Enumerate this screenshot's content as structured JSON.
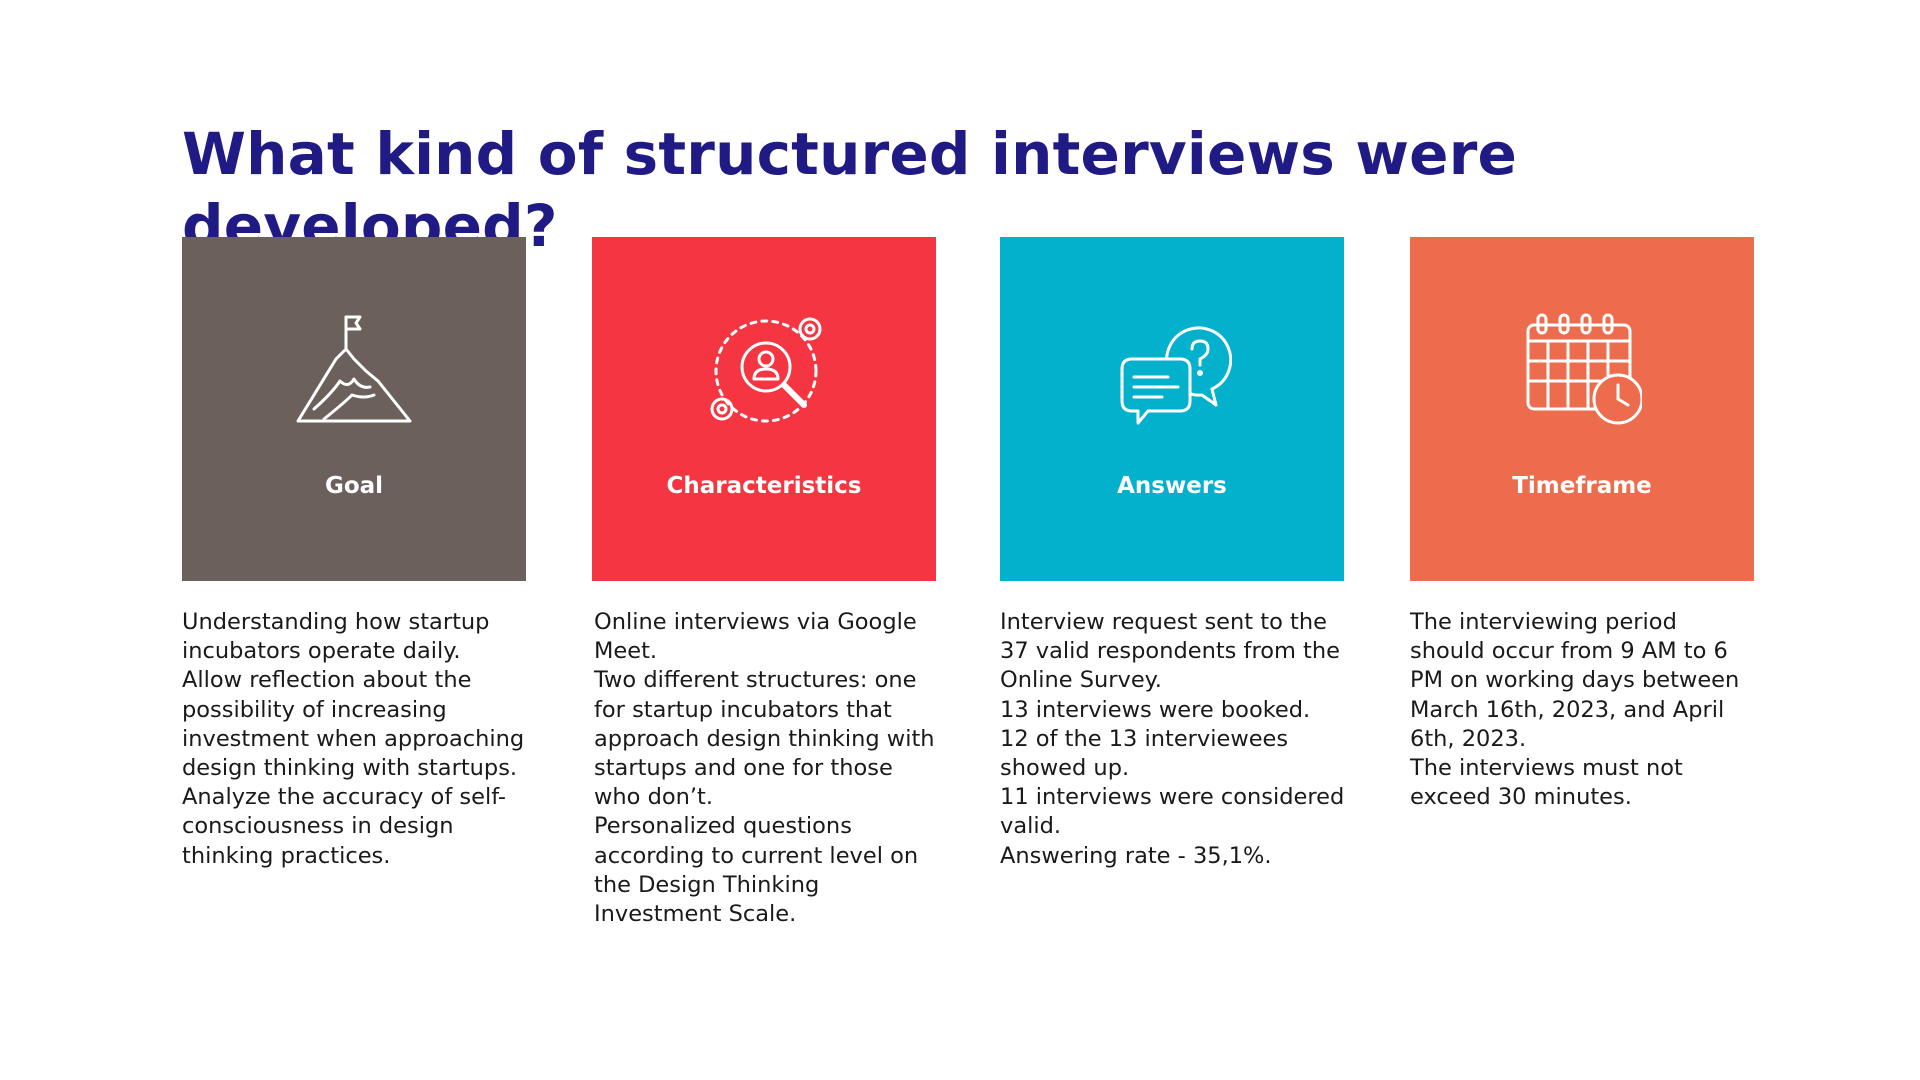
{
  "title": "What kind of structured interviews were developed?",
  "cards": [
    {
      "label": "Goal",
      "color": "#6b605c",
      "icon": "mountain-flag-icon",
      "lines": [
        "Understanding how startup incubators operate daily.",
        "Allow reflection about the possibility of increasing investment when approaching design thinking with startups.",
        "Analyze the accuracy of self-consciousness in design thinking practices."
      ]
    },
    {
      "label": "Characteristics",
      "color": "#f53642",
      "icon": "user-search-gears-icon",
      "lines": [
        "Online interviews via Google Meet.",
        "Two different structures: one for startup incubators that approach design thinking with startups and one for those who don’t.",
        "Personalized questions according to current level on the Design Thinking Investment Scale."
      ]
    },
    {
      "label": "Answers",
      "color": "#03b1cd",
      "icon": "chat-question-icon",
      "lines": [
        "Interview request sent to the 37 valid respondents from the Online Survey.",
        "13 interviews were booked.",
        "12 of the 13 interviewees showed up.",
        "11 interviews were considered valid.",
        "Answering rate - 35,1%."
      ]
    },
    {
      "label": "Timeframe",
      "color": "#ee6c4e",
      "icon": "calendar-clock-icon",
      "lines": [
        "The interviewing period should occur from 9 AM to 6 PM on working days between March 16th, 2023, and April 6th, 2023.",
        "The interviews must not exceed 30 minutes."
      ]
    }
  ]
}
